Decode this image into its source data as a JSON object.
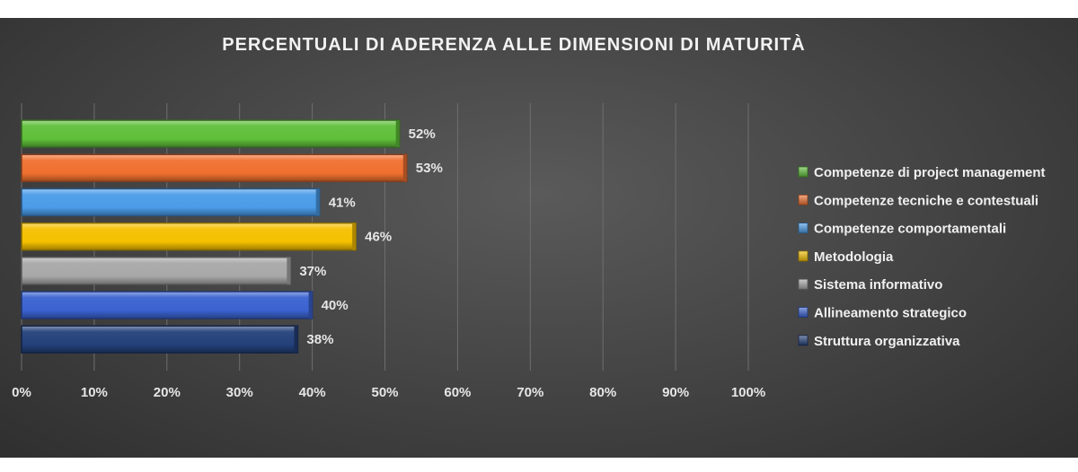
{
  "chart_data": {
    "type": "bar",
    "orientation": "horizontal",
    "title": "PERCENTUALI DI ADERENZA ALLE DIMENSIONI DI MATURITÀ",
    "xlabel": "",
    "ylabel": "",
    "xlim": [
      0,
      100
    ],
    "x_ticks": [
      "0%",
      "10%",
      "20%",
      "30%",
      "40%",
      "50%",
      "60%",
      "70%",
      "80%",
      "90%",
      "100%"
    ],
    "grid": true,
    "legend_position": "right",
    "series": [
      {
        "name": "Competenze di project management",
        "value": 52,
        "label": "52%",
        "color": "#5fbf3a"
      },
      {
        "name": "Competenze tecniche e contestuali",
        "value": 53,
        "label": "53%",
        "color": "#f07030"
      },
      {
        "name": "Competenze comportamentali",
        "value": 41,
        "label": "41%",
        "color": "#4a9be8"
      },
      {
        "name": "Metodologia",
        "value": 46,
        "label": "46%",
        "color": "#f5c000"
      },
      {
        "name": "Sistema informativo",
        "value": 37,
        "label": "37%",
        "color": "#a8a8a8"
      },
      {
        "name": "Allineamento strategico",
        "value": 40,
        "label": "40%",
        "color": "#3a62d0"
      },
      {
        "name": "Struttura organizzativa",
        "value": 38,
        "label": "38%",
        "color": "#23407a"
      }
    ]
  }
}
